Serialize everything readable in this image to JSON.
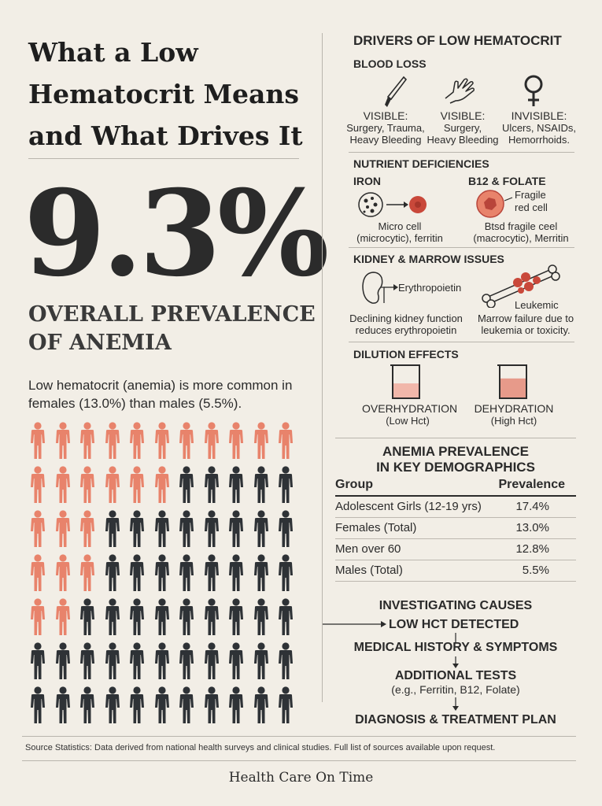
{
  "title_lines": [
    "What a Low",
    "Hematocrit Means",
    "and What Drives It"
  ],
  "headline": {
    "value": "9.3%",
    "caption_lines": [
      "OVERALL PREVALENCE",
      "OF ANEMIA"
    ]
  },
  "summary": "Low hematocrit (anemia) is more common in females (13.0%) than males (5.5%).",
  "icon_grid": {
    "columns": 11,
    "rows": 7,
    "highlighted_per_row": [
      11,
      6,
      3,
      3,
      2,
      0,
      0
    ],
    "colors": {
      "highlight": "#e8836b",
      "default": "#2e3236"
    }
  },
  "drivers": {
    "heading": "DRIVERS OF LOW HEMATOCRIT",
    "blood_loss": {
      "heading": "BLOOD LOSS",
      "items": [
        {
          "icon": "scalpel-icon",
          "type": "VISIBLE:",
          "desc_lines": [
            "Surgery, Trauma,",
            "Heavy Bleeding"
          ]
        },
        {
          "icon": "hand-icon",
          "type": "VISIBLE:",
          "desc_lines": [
            "Surgery,",
            "Heavy Bleeding"
          ]
        },
        {
          "icon": "female-symbol-icon",
          "type": "INVISIBLE:",
          "desc_lines": [
            "Ulcers, NSAIDs,",
            "Hemorrhoids."
          ]
        }
      ]
    },
    "nutrient": {
      "heading": "NUTRIENT DEFICIENCIES",
      "iron": {
        "label": "IRON",
        "desc_lines": [
          "Micro cell",
          "(microcytic), ferritin"
        ]
      },
      "b12": {
        "label": "B12 & FOLATE",
        "callout_lines": [
          "Fragile",
          "red cell"
        ],
        "desc_lines": [
          "Btsd fragile ceel",
          "(macrocytic), Merritin"
        ]
      }
    },
    "kidney": {
      "heading": "KIDNEY & MARROW ISSUES",
      "kidney_label": "Erythropoietin",
      "kidney_desc_lines": [
        "Declining kidney function",
        "reduces erythropoietin"
      ],
      "marrow_label": "Leukemic",
      "marrow_desc_lines": [
        "Marrow failure due to",
        "leukemia or toxicity."
      ]
    },
    "dilution": {
      "heading": "DILUTION EFFECTS",
      "items": [
        {
          "label": "OVERHYDRATION",
          "sub": "(Low Hct)",
          "fill": 0.45
        },
        {
          "label": "DEHYDRATION",
          "sub": "(High Hct)",
          "fill": 0.6
        }
      ]
    }
  },
  "demographics": {
    "heading_lines": [
      "ANEMIA PREVALENCE",
      "IN KEY DEMOGRAPHICS"
    ],
    "columns": [
      "Group",
      "Prevalence"
    ],
    "rows": [
      {
        "group": "Adolescent Girls (12-19 yrs)",
        "value": "17.4%"
      },
      {
        "group": "Females (Total)",
        "value": "13.0%"
      },
      {
        "group": "Men over 60",
        "value": "12.8%"
      },
      {
        "group": "Males (Total)",
        "value": "5.5%"
      }
    ]
  },
  "flow": {
    "heading": "INVESTIGATING CAUSES",
    "steps": [
      "LOW HCT DETECTED",
      "MEDICAL HISTORY & SYMPTOMS",
      "ADDITIONAL TESTS",
      "DIAGNOSIS & TREATMENT PLAN"
    ],
    "tests_note": "(e.g., Ferritin, B12, Folate)"
  },
  "footer": {
    "sources": "Source Statistics: Data derived from national health surveys and clinical studies. Full list of sources available upon request.",
    "brand": "Health Care On Time"
  },
  "colors": {
    "accent": "#e8836b",
    "dark": "#2e3236",
    "background": "#f2eee6",
    "blood": "#c9483a"
  }
}
